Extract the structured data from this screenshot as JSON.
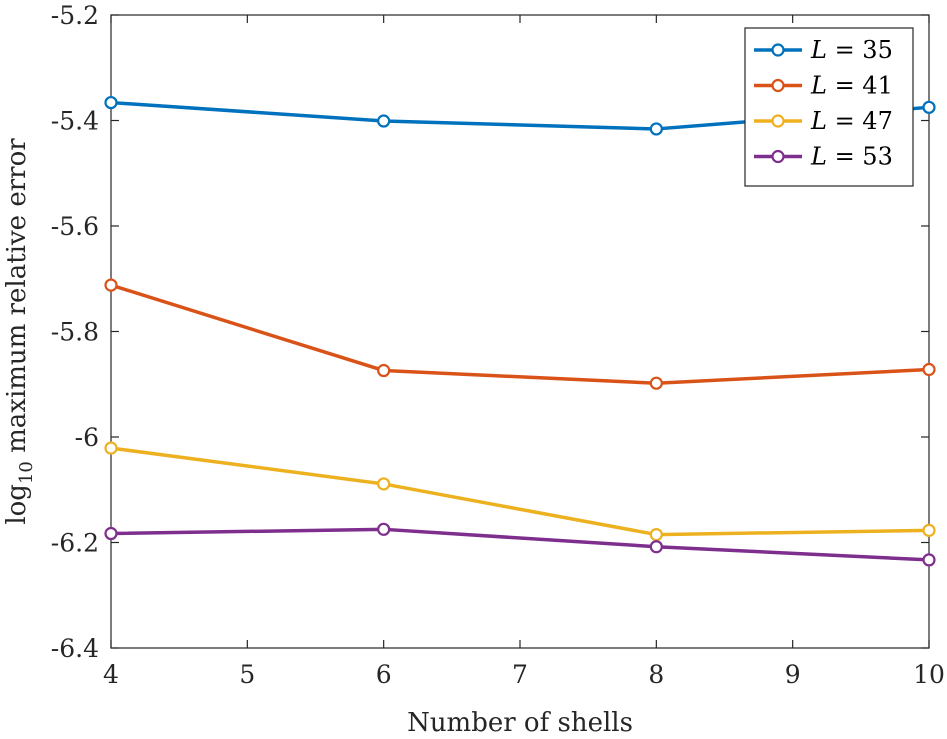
{
  "chart_data": {
    "type": "line",
    "title": "",
    "xlabel": "Number of shells",
    "ylabel": {
      "prefix": "log",
      "subscript": "10",
      "text": " maximum relative error"
    },
    "xlim": [
      4,
      10
    ],
    "ylim": [
      -6.4,
      -5.2
    ],
    "xticks": [
      4,
      5,
      6,
      7,
      8,
      9,
      10
    ],
    "xtick_labels": [
      "4",
      "5",
      "6",
      "7",
      "8",
      "9",
      "10"
    ],
    "yticks": [
      -5.2,
      -5.4,
      -5.6,
      -5.8,
      -6.0,
      -6.2,
      -6.4
    ],
    "ytick_labels": [
      "-5.2",
      "-5.4",
      "-5.6",
      "-5.8",
      "-6",
      "-6.2",
      "-6.4"
    ],
    "x": [
      4,
      6,
      8,
      10
    ],
    "legend_position": "top-right",
    "series": [
      {
        "name": "L = 35",
        "var": "L",
        "eq": " = 35",
        "color": "#0072BD",
        "values": [
          -5.366,
          -5.401,
          -5.416,
          -5.375
        ]
      },
      {
        "name": "L = 41",
        "var": "L",
        "eq": " = 41",
        "color": "#D95319",
        "values": [
          -5.712,
          -5.874,
          -5.898,
          -5.872
        ]
      },
      {
        "name": "L = 47",
        "var": "L",
        "eq": " = 47",
        "color": "#EDB120",
        "values": [
          -6.021,
          -6.089,
          -6.185,
          -6.177
        ]
      },
      {
        "name": "L = 53",
        "var": "L",
        "eq": " = 53",
        "color": "#7E2F8E",
        "values": [
          -6.183,
          -6.175,
          -6.208,
          -6.233
        ]
      }
    ]
  }
}
